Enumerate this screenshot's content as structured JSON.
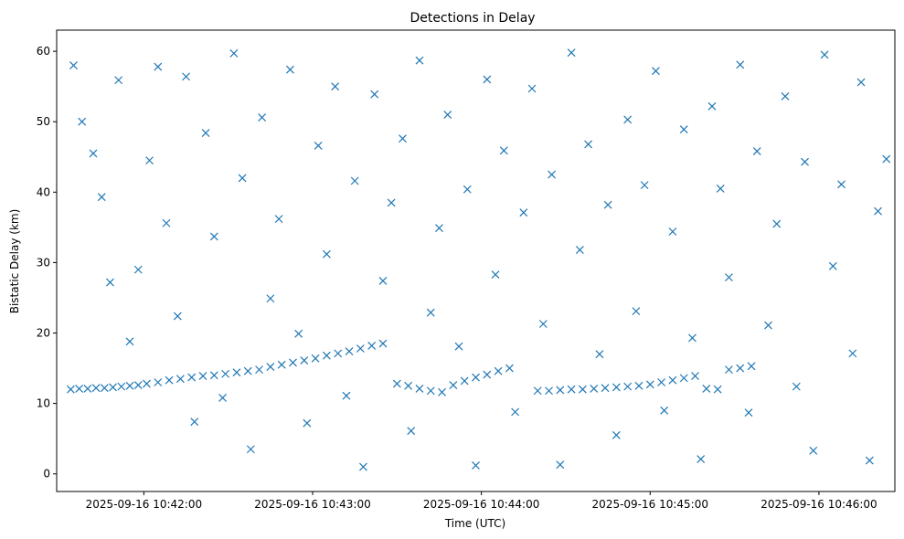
{
  "chart_data": {
    "type": "scatter",
    "title": "Detections in Delay",
    "xlabel": "Time (UTC)",
    "ylabel": "Bistatic Delay (km)",
    "x_type": "datetime",
    "xlim": [
      "2025-09-16 10:41:29",
      "2025-09-16 10:46:27"
    ],
    "ylim": [
      -2.5,
      63
    ],
    "x_ticks": [
      "2025-09-16 10:42:00",
      "2025-09-16 10:43:00",
      "2025-09-16 10:44:00",
      "2025-09-16 10:45:00",
      "2025-09-16 10:46:00"
    ],
    "y_ticks": [
      0,
      10,
      20,
      30,
      40,
      50,
      60
    ],
    "grid": false,
    "legend": "none",
    "marker": "x",
    "color": "#1f77b4",
    "series": [
      {
        "values": [
          [
            "2025-09-16 10:41:34",
            12.0
          ],
          [
            "2025-09-16 10:41:37",
            12.1
          ],
          [
            "2025-09-16 10:41:40",
            12.1
          ],
          [
            "2025-09-16 10:41:43",
            12.2
          ],
          [
            "2025-09-16 10:41:46",
            12.2
          ],
          [
            "2025-09-16 10:41:49",
            12.3
          ],
          [
            "2025-09-16 10:41:52",
            12.4
          ],
          [
            "2025-09-16 10:41:55",
            12.5
          ],
          [
            "2025-09-16 10:41:58",
            12.6
          ],
          [
            "2025-09-16 10:42:01",
            12.8
          ],
          [
            "2025-09-16 10:42:05",
            13.0
          ],
          [
            "2025-09-16 10:42:09",
            13.3
          ],
          [
            "2025-09-16 10:42:13",
            13.5
          ],
          [
            "2025-09-16 10:42:17",
            13.7
          ],
          [
            "2025-09-16 10:42:21",
            13.9
          ],
          [
            "2025-09-16 10:42:25",
            14.0
          ],
          [
            "2025-09-16 10:42:29",
            14.2
          ],
          [
            "2025-09-16 10:42:33",
            14.4
          ],
          [
            "2025-09-16 10:42:37",
            14.6
          ],
          [
            "2025-09-16 10:42:41",
            14.8
          ],
          [
            "2025-09-16 10:42:45",
            15.2
          ],
          [
            "2025-09-16 10:42:49",
            15.5
          ],
          [
            "2025-09-16 10:42:53",
            15.8
          ],
          [
            "2025-09-16 10:42:57",
            16.1
          ],
          [
            "2025-09-16 10:43:01",
            16.4
          ],
          [
            "2025-09-16 10:43:05",
            16.8
          ],
          [
            "2025-09-16 10:43:09",
            17.1
          ],
          [
            "2025-09-16 10:43:13",
            17.4
          ],
          [
            "2025-09-16 10:43:17",
            17.8
          ],
          [
            "2025-09-16 10:43:21",
            18.2
          ],
          [
            "2025-09-16 10:43:25",
            18.5
          ],
          [
            "2025-09-16 10:43:30",
            12.8
          ],
          [
            "2025-09-16 10:43:34",
            12.5
          ],
          [
            "2025-09-16 10:43:38",
            12.1
          ],
          [
            "2025-09-16 10:43:42",
            11.8
          ],
          [
            "2025-09-16 10:43:46",
            11.6
          ],
          [
            "2025-09-16 10:43:50",
            12.6
          ],
          [
            "2025-09-16 10:43:54",
            13.2
          ],
          [
            "2025-09-16 10:43:58",
            13.7
          ],
          [
            "2025-09-16 10:44:02",
            14.1
          ],
          [
            "2025-09-16 10:44:06",
            14.6
          ],
          [
            "2025-09-16 10:44:10",
            15.0
          ],
          [
            "2025-09-16 10:44:20",
            11.8
          ],
          [
            "2025-09-16 10:44:24",
            11.8
          ],
          [
            "2025-09-16 10:44:28",
            11.9
          ],
          [
            "2025-09-16 10:44:32",
            12.0
          ],
          [
            "2025-09-16 10:44:36",
            12.0
          ],
          [
            "2025-09-16 10:44:40",
            12.1
          ],
          [
            "2025-09-16 10:44:44",
            12.2
          ],
          [
            "2025-09-16 10:44:48",
            12.3
          ],
          [
            "2025-09-16 10:44:52",
            12.4
          ],
          [
            "2025-09-16 10:44:56",
            12.5
          ],
          [
            "2025-09-16 10:45:00",
            12.7
          ],
          [
            "2025-09-16 10:45:04",
            13.0
          ],
          [
            "2025-09-16 10:45:08",
            13.3
          ],
          [
            "2025-09-16 10:45:12",
            13.6
          ],
          [
            "2025-09-16 10:45:16",
            13.9
          ],
          [
            "2025-09-16 10:45:20",
            12.1
          ],
          [
            "2025-09-16 10:45:24",
            12.0
          ],
          [
            "2025-09-16 10:45:28",
            14.8
          ],
          [
            "2025-09-16 10:45:32",
            15.0
          ],
          [
            "2025-09-16 10:45:36",
            15.3
          ],
          [
            "2025-09-16 10:41:35",
            58.0
          ],
          [
            "2025-09-16 10:41:38",
            50.0
          ],
          [
            "2025-09-16 10:41:42",
            45.5
          ],
          [
            "2025-09-16 10:41:45",
            39.3
          ],
          [
            "2025-09-16 10:41:48",
            27.2
          ],
          [
            "2025-09-16 10:41:51",
            55.9
          ],
          [
            "2025-09-16 10:41:55",
            18.8
          ],
          [
            "2025-09-16 10:41:58",
            29.0
          ],
          [
            "2025-09-16 10:42:02",
            44.5
          ],
          [
            "2025-09-16 10:42:05",
            57.8
          ],
          [
            "2025-09-16 10:42:08",
            35.6
          ],
          [
            "2025-09-16 10:42:12",
            22.4
          ],
          [
            "2025-09-16 10:42:15",
            56.4
          ],
          [
            "2025-09-16 10:42:18",
            7.4
          ],
          [
            "2025-09-16 10:42:22",
            48.4
          ],
          [
            "2025-09-16 10:42:25",
            33.7
          ],
          [
            "2025-09-16 10:42:28",
            10.8
          ],
          [
            "2025-09-16 10:42:32",
            59.7
          ],
          [
            "2025-09-16 10:42:35",
            42.0
          ],
          [
            "2025-09-16 10:42:38",
            3.5
          ],
          [
            "2025-09-16 10:42:42",
            50.6
          ],
          [
            "2025-09-16 10:42:45",
            24.9
          ],
          [
            "2025-09-16 10:42:48",
            36.2
          ],
          [
            "2025-09-16 10:42:52",
            57.4
          ],
          [
            "2025-09-16 10:42:55",
            19.9
          ],
          [
            "2025-09-16 10:42:58",
            7.2
          ],
          [
            "2025-09-16 10:43:02",
            46.6
          ],
          [
            "2025-09-16 10:43:05",
            31.2
          ],
          [
            "2025-09-16 10:43:08",
            55.0
          ],
          [
            "2025-09-16 10:43:12",
            11.1
          ],
          [
            "2025-09-16 10:43:15",
            41.6
          ],
          [
            "2025-09-16 10:43:18",
            1.0
          ],
          [
            "2025-09-16 10:43:22",
            53.9
          ],
          [
            "2025-09-16 10:43:25",
            27.4
          ],
          [
            "2025-09-16 10:43:28",
            38.5
          ],
          [
            "2025-09-16 10:43:32",
            47.6
          ],
          [
            "2025-09-16 10:43:35",
            6.1
          ],
          [
            "2025-09-16 10:43:38",
            58.7
          ],
          [
            "2025-09-16 10:43:42",
            22.9
          ],
          [
            "2025-09-16 10:43:45",
            34.9
          ],
          [
            "2025-09-16 10:43:48",
            51.0
          ],
          [
            "2025-09-16 10:43:52",
            18.1
          ],
          [
            "2025-09-16 10:43:55",
            40.4
          ],
          [
            "2025-09-16 10:43:58",
            1.2
          ],
          [
            "2025-09-16 10:44:02",
            56.0
          ],
          [
            "2025-09-16 10:44:05",
            28.3
          ],
          [
            "2025-09-16 10:44:08",
            45.9
          ],
          [
            "2025-09-16 10:44:12",
            8.8
          ],
          [
            "2025-09-16 10:44:15",
            37.1
          ],
          [
            "2025-09-16 10:44:18",
            54.7
          ],
          [
            "2025-09-16 10:44:22",
            21.3
          ],
          [
            "2025-09-16 10:44:25",
            42.5
          ],
          [
            "2025-09-16 10:44:28",
            1.3
          ],
          [
            "2025-09-16 10:44:32",
            59.8
          ],
          [
            "2025-09-16 10:44:35",
            31.8
          ],
          [
            "2025-09-16 10:44:38",
            46.8
          ],
          [
            "2025-09-16 10:44:42",
            17.0
          ],
          [
            "2025-09-16 10:44:45",
            38.2
          ],
          [
            "2025-09-16 10:44:48",
            5.5
          ],
          [
            "2025-09-16 10:44:52",
            50.3
          ],
          [
            "2025-09-16 10:44:55",
            23.1
          ],
          [
            "2025-09-16 10:44:58",
            41.0
          ],
          [
            "2025-09-16 10:45:02",
            57.2
          ],
          [
            "2025-09-16 10:45:05",
            9.0
          ],
          [
            "2025-09-16 10:45:08",
            34.4
          ],
          [
            "2025-09-16 10:45:12",
            48.9
          ],
          [
            "2025-09-16 10:45:15",
            19.3
          ],
          [
            "2025-09-16 10:45:18",
            2.1
          ],
          [
            "2025-09-16 10:45:22",
            52.2
          ],
          [
            "2025-09-16 10:45:25",
            40.5
          ],
          [
            "2025-09-16 10:45:28",
            27.9
          ],
          [
            "2025-09-16 10:45:32",
            58.1
          ],
          [
            "2025-09-16 10:45:35",
            8.7
          ],
          [
            "2025-09-16 10:45:38",
            45.8
          ],
          [
            "2025-09-16 10:45:42",
            21.1
          ],
          [
            "2025-09-16 10:45:45",
            35.5
          ],
          [
            "2025-09-16 10:45:48",
            53.6
          ],
          [
            "2025-09-16 10:45:52",
            12.4
          ],
          [
            "2025-09-16 10:45:55",
            44.3
          ],
          [
            "2025-09-16 10:45:58",
            3.3
          ],
          [
            "2025-09-16 10:46:02",
            59.5
          ],
          [
            "2025-09-16 10:46:05",
            29.5
          ],
          [
            "2025-09-16 10:46:08",
            41.1
          ],
          [
            "2025-09-16 10:46:12",
            17.1
          ],
          [
            "2025-09-16 10:46:15",
            55.6
          ],
          [
            "2025-09-16 10:46:18",
            1.9
          ],
          [
            "2025-09-16 10:46:21",
            37.3
          ],
          [
            "2025-09-16 10:46:24",
            44.7
          ]
        ]
      }
    ]
  }
}
